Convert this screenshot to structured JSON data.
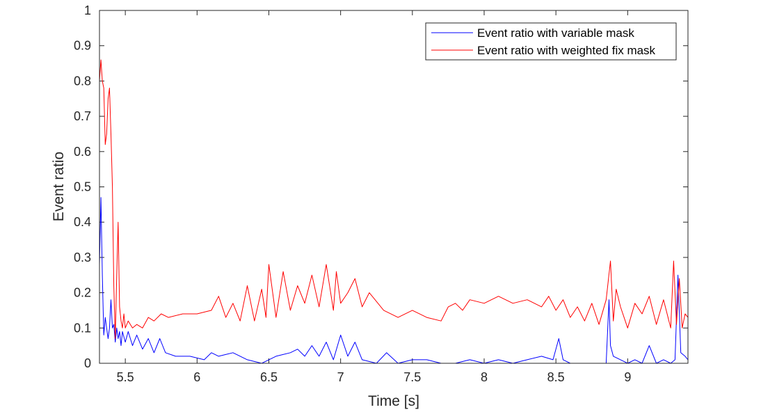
{
  "chart_data": {
    "type": "line",
    "xlabel": "Time [s]",
    "ylabel": "Event ratio",
    "xlim": [
      5.32,
      9.42
    ],
    "ylim": [
      0,
      1
    ],
    "xticks": [
      5.5,
      6,
      6.5,
      7,
      7.5,
      8,
      8.5,
      9
    ],
    "xtick_labels": [
      "5.5",
      "6",
      "6.5",
      "7",
      "7.5",
      "8",
      "8.5",
      "9"
    ],
    "yticks": [
      0,
      0.1,
      0.2,
      0.3,
      0.4,
      0.5,
      0.6,
      0.7,
      0.8,
      0.9,
      1
    ],
    "ytick_labels": [
      "0",
      "0.1",
      "0.2",
      "0.3",
      "0.4",
      "0.5",
      "0.6",
      "0.7",
      "0.8",
      "0.9",
      "1"
    ],
    "grid": false,
    "legend_position": "top-right",
    "series": [
      {
        "name": "Event ratio with variable mask",
        "color": "#0000ff",
        "x": [
          5.32,
          5.33,
          5.34,
          5.35,
          5.36,
          5.37,
          5.38,
          5.39,
          5.4,
          5.41,
          5.42,
          5.43,
          5.44,
          5.45,
          5.46,
          5.47,
          5.48,
          5.5,
          5.52,
          5.55,
          5.58,
          5.62,
          5.66,
          5.7,
          5.74,
          5.78,
          5.85,
          5.95,
          6.05,
          6.1,
          6.15,
          6.25,
          6.35,
          6.45,
          6.55,
          6.65,
          6.7,
          6.75,
          6.8,
          6.85,
          6.9,
          6.95,
          7.0,
          7.05,
          7.1,
          7.15,
          7.25,
          7.32,
          7.4,
          7.5,
          7.6,
          7.7,
          7.8,
          7.9,
          8.0,
          8.1,
          8.2,
          8.3,
          8.4,
          8.48,
          8.52,
          8.55,
          8.6,
          8.7,
          8.8,
          8.85,
          8.87,
          8.88,
          8.9,
          8.95,
          9.0,
          9.05,
          9.1,
          9.15,
          9.2,
          9.25,
          9.3,
          9.33,
          9.35,
          9.37,
          9.4,
          9.42
        ],
        "y": [
          0.28,
          0.47,
          0.25,
          0.08,
          0.13,
          0.1,
          0.07,
          0.1,
          0.18,
          0.1,
          0.11,
          0.06,
          0.1,
          0.07,
          0.09,
          0.05,
          0.09,
          0.06,
          0.09,
          0.05,
          0.08,
          0.04,
          0.07,
          0.03,
          0.07,
          0.03,
          0.02,
          0.02,
          0.01,
          0.03,
          0.02,
          0.03,
          0.01,
          0.0,
          0.02,
          0.03,
          0.04,
          0.02,
          0.05,
          0.02,
          0.06,
          0.01,
          0.08,
          0.02,
          0.06,
          0.01,
          0.0,
          0.03,
          0.0,
          0.01,
          0.01,
          0.0,
          0.0,
          0.01,
          0.0,
          0.01,
          0.0,
          0.01,
          0.02,
          0.01,
          0.07,
          0.01,
          0.0,
          0.0,
          0.0,
          0.0,
          0.18,
          0.05,
          0.02,
          0.01,
          0.0,
          0.01,
          0.0,
          0.05,
          0.0,
          0.01,
          0.0,
          0.01,
          0.25,
          0.03,
          0.02,
          0.01
        ]
      },
      {
        "name": "Event ratio with weighted fix mask",
        "color": "#ff0000",
        "x": [
          5.32,
          5.33,
          5.34,
          5.35,
          5.36,
          5.37,
          5.38,
          5.39,
          5.4,
          5.41,
          5.42,
          5.43,
          5.44,
          5.45,
          5.46,
          5.47,
          5.48,
          5.49,
          5.5,
          5.52,
          5.55,
          5.58,
          5.62,
          5.66,
          5.7,
          5.75,
          5.8,
          5.9,
          6.0,
          6.1,
          6.15,
          6.2,
          6.25,
          6.3,
          6.35,
          6.4,
          6.45,
          6.48,
          6.5,
          6.55,
          6.6,
          6.65,
          6.7,
          6.75,
          6.8,
          6.85,
          6.9,
          6.95,
          6.97,
          7.0,
          7.05,
          7.1,
          7.15,
          7.2,
          7.3,
          7.4,
          7.5,
          7.6,
          7.7,
          7.75,
          7.8,
          7.85,
          7.9,
          8.0,
          8.1,
          8.2,
          8.3,
          8.4,
          8.45,
          8.5,
          8.55,
          8.6,
          8.65,
          8.7,
          8.75,
          8.8,
          8.85,
          8.88,
          8.9,
          8.92,
          8.95,
          9.0,
          9.05,
          9.1,
          9.15,
          9.2,
          9.25,
          9.3,
          9.32,
          9.34,
          9.36,
          9.38,
          9.4,
          9.42
        ],
        "y": [
          0.8,
          0.86,
          0.8,
          0.78,
          0.62,
          0.65,
          0.75,
          0.78,
          0.65,
          0.5,
          0.22,
          0.07,
          0.25,
          0.4,
          0.16,
          0.12,
          0.1,
          0.14,
          0.1,
          0.12,
          0.1,
          0.11,
          0.1,
          0.13,
          0.12,
          0.14,
          0.13,
          0.14,
          0.14,
          0.15,
          0.19,
          0.13,
          0.17,
          0.12,
          0.22,
          0.12,
          0.21,
          0.13,
          0.28,
          0.13,
          0.26,
          0.15,
          0.22,
          0.17,
          0.25,
          0.16,
          0.28,
          0.15,
          0.26,
          0.17,
          0.2,
          0.24,
          0.16,
          0.2,
          0.15,
          0.13,
          0.15,
          0.13,
          0.12,
          0.16,
          0.17,
          0.15,
          0.18,
          0.17,
          0.19,
          0.17,
          0.18,
          0.16,
          0.19,
          0.15,
          0.18,
          0.13,
          0.16,
          0.12,
          0.17,
          0.11,
          0.18,
          0.29,
          0.12,
          0.21,
          0.16,
          0.1,
          0.17,
          0.14,
          0.19,
          0.11,
          0.18,
          0.1,
          0.29,
          0.11,
          0.24,
          0.1,
          0.14,
          0.13
        ]
      }
    ]
  }
}
